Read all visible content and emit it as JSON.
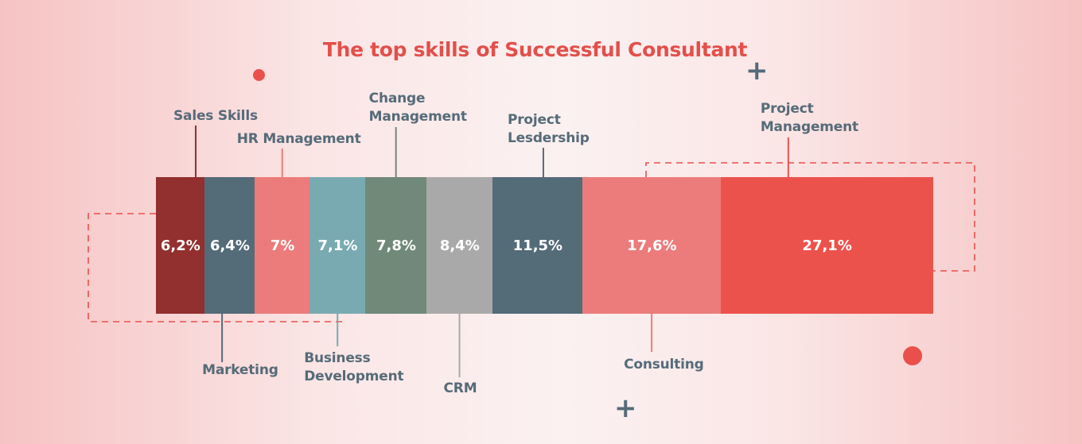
{
  "chart_data": {
    "type": "bar",
    "title": "The top skills of Successful Consultant",
    "orientation": "stacked-horizontal",
    "unit": "%",
    "categories": [
      "Sales Skills",
      "Marketing",
      "HR Management",
      "Business Development",
      "Change Management",
      "CRM",
      "Project Lesdership",
      "Consulting",
      "Project Management"
    ],
    "values": [
      6.2,
      6.4,
      7.0,
      7.1,
      7.8,
      8.4,
      11.5,
      17.6,
      27.1
    ],
    "value_labels": [
      "6,2%",
      "6,4%",
      "7%",
      "7,1%",
      "7,8%",
      "8,4%",
      "11,5%",
      "17,6%",
      "27,1%"
    ],
    "label_positions": [
      "top",
      "bottom",
      "top",
      "bottom",
      "top",
      "bottom",
      "top",
      "bottom",
      "top"
    ],
    "colors": [
      "#922f2f",
      "#546b78",
      "#eb7c7b",
      "#79aab1",
      "#708978",
      "#a9a9a9",
      "#546b78",
      "#eb7c7b",
      "#ec524c"
    ],
    "label_color": "#556b79",
    "accent": "#e34f4a"
  },
  "decorations": {
    "dot_icon": "red-dot-icon",
    "plus_icon": "plus-icon",
    "plus_glyph": "+"
  }
}
